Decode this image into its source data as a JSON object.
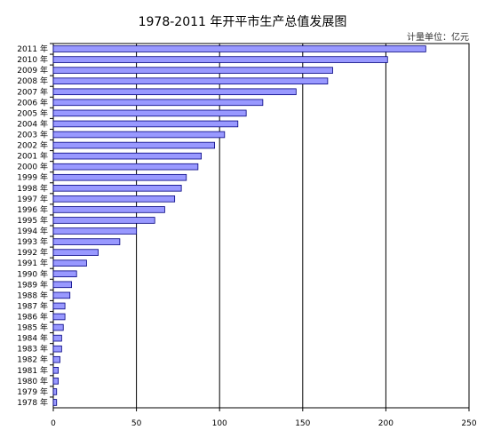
{
  "chart_data": {
    "type": "bar",
    "orientation": "horizontal",
    "title": "1978-2011 年开平市生产总值发展图",
    "unit": "计量单位：亿元",
    "categories": [
      "2011 年",
      "2010 年",
      "2009 年",
      "2008 年",
      "2007 年",
      "2006 年",
      "2005 年",
      "2004 年",
      "2003 年",
      "2002 年",
      "2001 年",
      "2000 年",
      "1999 年",
      "1998 年",
      "1997 年",
      "1996 年",
      "1995 年",
      "1994 年",
      "1993 年",
      "1992 年",
      "1991 年",
      "1990 年",
      "1989 年",
      "1988 年",
      "1987 年",
      "1986 年",
      "1985 年",
      "1984 年",
      "1983 年",
      "1982 年",
      "1981 年",
      "1980 年",
      "1979 年",
      "1978 年"
    ],
    "values": [
      224,
      201,
      168,
      165,
      146,
      126,
      116,
      111,
      103,
      97,
      89,
      87,
      80,
      77,
      73,
      67,
      61,
      50,
      40,
      27,
      20,
      14,
      11,
      10,
      7,
      7,
      6,
      5,
      5,
      4,
      3,
      3,
      2,
      2
    ],
    "xlim": [
      0,
      250
    ],
    "xticks": [
      0,
      50,
      100,
      150,
      200,
      250
    ],
    "grid": true,
    "bar_color": "#9999ff",
    "bar_edge_color": "#000080"
  }
}
